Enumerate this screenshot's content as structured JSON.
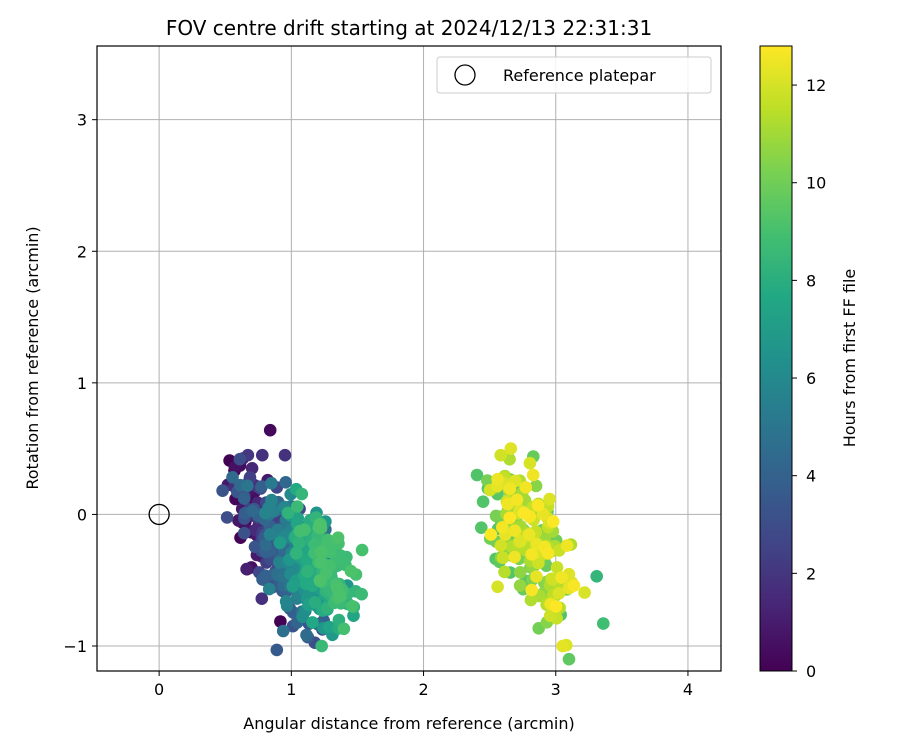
{
  "chart_data": {
    "type": "scatter",
    "title": "FOV centre drift starting at 2024/12/13 22:31:31",
    "xlabel": "Angular distance from reference (arcmin)",
    "ylabel": "Rotation from reference (arcmin)",
    "xlim": [
      -0.47,
      4.25
    ],
    "ylim": [
      -1.19,
      3.56
    ],
    "xticks": [
      0,
      1,
      2,
      3,
      4
    ],
    "yticks": [
      -1,
      0,
      1,
      2,
      3
    ],
    "xtick_labels": [
      "0",
      "1",
      "2",
      "3",
      "4"
    ],
    "ytick_labels": [
      "−1",
      "0",
      "1",
      "2",
      "3"
    ],
    "grid": true,
    "legend": {
      "placement": "top-right",
      "label": "Reference platepar",
      "marker": "open-circle"
    },
    "reference_point": {
      "x": 0,
      "y": 0
    },
    "colorbar": {
      "label": "Hours from first FF file",
      "min": 0,
      "max": 12.8,
      "ticks": [
        0,
        2,
        4,
        6,
        8,
        10,
        12
      ],
      "colormap": "viridis"
    },
    "cluster_model": [
      {
        "hours": [
          0,
          3
        ],
        "center": [
          0.78,
          -0.08
        ],
        "spread": [
          0.1,
          0.22
        ],
        "slope": -0.55
      },
      {
        "hours": [
          3,
          6
        ],
        "center": [
          0.95,
          -0.28
        ],
        "spread": [
          0.14,
          0.22
        ],
        "slope": -0.55
      },
      {
        "hours": [
          6,
          9.2
        ],
        "center": [
          1.22,
          -0.42
        ],
        "spread": [
          0.11,
          0.18
        ],
        "slope": -0.55
      },
      {
        "hours": [
          9.2,
          12.8
        ],
        "center": [
          2.82,
          -0.25
        ],
        "spread": [
          0.16,
          0.22
        ],
        "slope": -0.45
      }
    ],
    "points_anchor": [
      {
        "x": 0.84,
        "y": 0.64,
        "h": 0.3
      },
      {
        "x": 0.89,
        "y": -1.03,
        "h": 3.6
      },
      {
        "x": 3.1,
        "y": -1.1,
        "h": 9.6
      },
      {
        "x": 2.66,
        "y": 0.5,
        "h": 12.2
      },
      {
        "x": 2.83,
        "y": 0.44,
        "h": 9.8
      },
      {
        "x": 3.36,
        "y": -0.83,
        "h": 8.8
      },
      {
        "x": 1.23,
        "y": -1.0,
        "h": 8.6
      },
      {
        "x": 0.48,
        "y": 0.18,
        "h": 3.3
      },
      {
        "x": 0.61,
        "y": 0.42,
        "h": 3.0
      },
      {
        "x": 2.56,
        "y": -0.55,
        "h": 12.0
      },
      {
        "x": 3.31,
        "y": -0.47,
        "h": 8.4
      },
      {
        "x": 1.47,
        "y": -0.77,
        "h": 7.5
      }
    ]
  }
}
